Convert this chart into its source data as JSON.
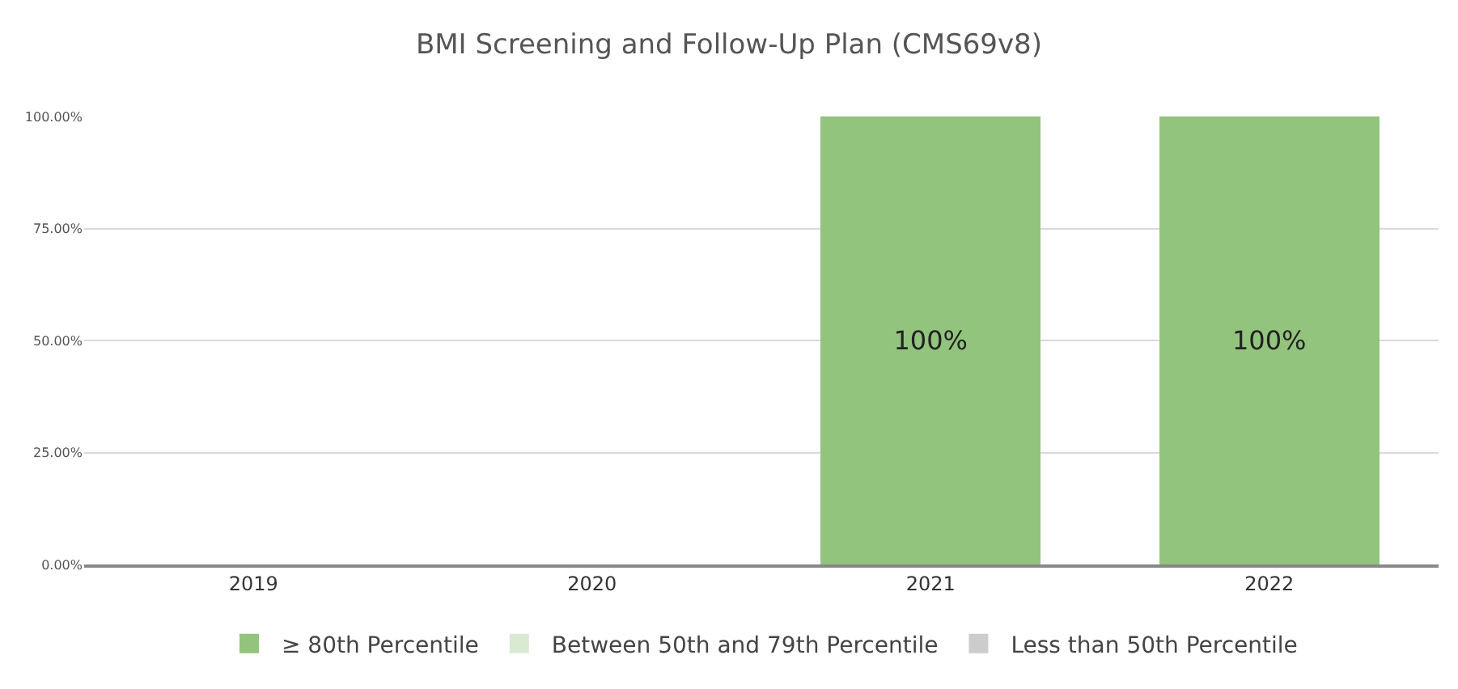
{
  "chart_data": {
    "type": "bar",
    "title": "BMI Screening and Follow-Up Plan (CMS69v8)",
    "stacked": true,
    "categories": [
      "2019",
      "2020",
      "2021",
      "2022"
    ],
    "series": [
      {
        "name": "≥ 80th Percentile",
        "color": "#93c47d",
        "values": [
          null,
          null,
          100,
          100
        ],
        "value_labels": [
          null,
          null,
          "100%",
          "100%"
        ]
      },
      {
        "name": "Between 50th and 79th Percentile",
        "color": "#d9ead3",
        "values": [
          null,
          null,
          null,
          null
        ]
      },
      {
        "name": "Less than 50th Percentile",
        "color": "#cccccc",
        "values": [
          null,
          null,
          null,
          null
        ]
      }
    ],
    "ylim": [
      0,
      100
    ],
    "yticks": [
      {
        "value": 0,
        "label": "0.00%"
      },
      {
        "value": 25,
        "label": "25.00%"
      },
      {
        "value": 50,
        "label": "50.00%"
      },
      {
        "value": 75,
        "label": "75.00%"
      },
      {
        "value": 100,
        "label": "100.00%"
      }
    ],
    "grid": "y",
    "legend": "bottom"
  }
}
